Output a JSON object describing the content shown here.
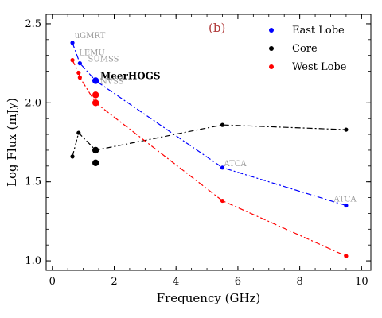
{
  "chart_data": {
    "type": "line",
    "panel_label": "(b)",
    "xlabel": "Frequency (GHz)",
    "ylabel": "Log Flux (mJy)",
    "xlim": [
      -0.2,
      10.3
    ],
    "ylim": [
      0.94,
      2.56
    ],
    "xticks": [
      0,
      2,
      4,
      6,
      8,
      10
    ],
    "yticks": [
      1.0,
      1.5,
      2.0,
      2.5
    ],
    "ytick_labels": [
      "1.0",
      "1.5",
      "2.0",
      "2.5"
    ],
    "legend_position": "top-right",
    "series": [
      {
        "name": "East Lobe",
        "color": "#0000ff",
        "line_style": "dash-dot",
        "points": [
          {
            "x": 0.65,
            "y": 2.38
          },
          {
            "x": 0.89,
            "y": 2.25
          },
          {
            "x": 1.4,
            "y": 2.14
          },
          {
            "x": 5.5,
            "y": 1.59
          },
          {
            "x": 9.5,
            "y": 1.35
          }
        ],
        "large_point_x": 1.4
      },
      {
        "name": "Core",
        "color": "#000000",
        "line_style": "dash-dot",
        "points": [
          {
            "x": 0.65,
            "y": 1.66
          },
          {
            "x": 0.85,
            "y": 1.81
          },
          {
            "x": 1.4,
            "y": 1.7
          },
          {
            "x": 5.5,
            "y": 1.86
          },
          {
            "x": 9.5,
            "y": 1.83
          }
        ],
        "extra_points": [
          {
            "x": 1.4,
            "y": 1.62
          }
        ],
        "large_point_x": 1.4
      },
      {
        "name": "West Lobe",
        "color": "#ff0000",
        "line_style": "dash-dot",
        "points": [
          {
            "x": 0.65,
            "y": 2.27
          },
          {
            "x": 0.85,
            "y": 2.19
          },
          {
            "x": 0.89,
            "y": 2.16
          },
          {
            "x": 1.4,
            "y": 2.0
          },
          {
            "x": 5.5,
            "y": 1.38
          },
          {
            "x": 9.5,
            "y": 1.03
          }
        ],
        "extra_points": [
          {
            "x": 1.4,
            "y": 2.05
          }
        ],
        "large_point_x": 1.4
      }
    ],
    "annotations": [
      {
        "text": "uGMRT",
        "x": 0.72,
        "y": 2.41,
        "style": "annot"
      },
      {
        "text": "LEMU",
        "x": 0.86,
        "y": 2.3,
        "style": "annot"
      },
      {
        "text": "SUMSS",
        "x": 1.15,
        "y": 2.26,
        "style": "annot"
      },
      {
        "text": "MeerHOGS",
        "x": 1.55,
        "y": 2.15,
        "style": "annot-dark"
      },
      {
        "text": "NVSS",
        "x": 1.55,
        "y": 2.12,
        "style": "annot"
      },
      {
        "text": "ATCA",
        "x": 5.55,
        "y": 1.6,
        "style": "annot"
      },
      {
        "text": "ATCA",
        "x": 9.1,
        "y": 1.375,
        "style": "annot"
      }
    ]
  }
}
